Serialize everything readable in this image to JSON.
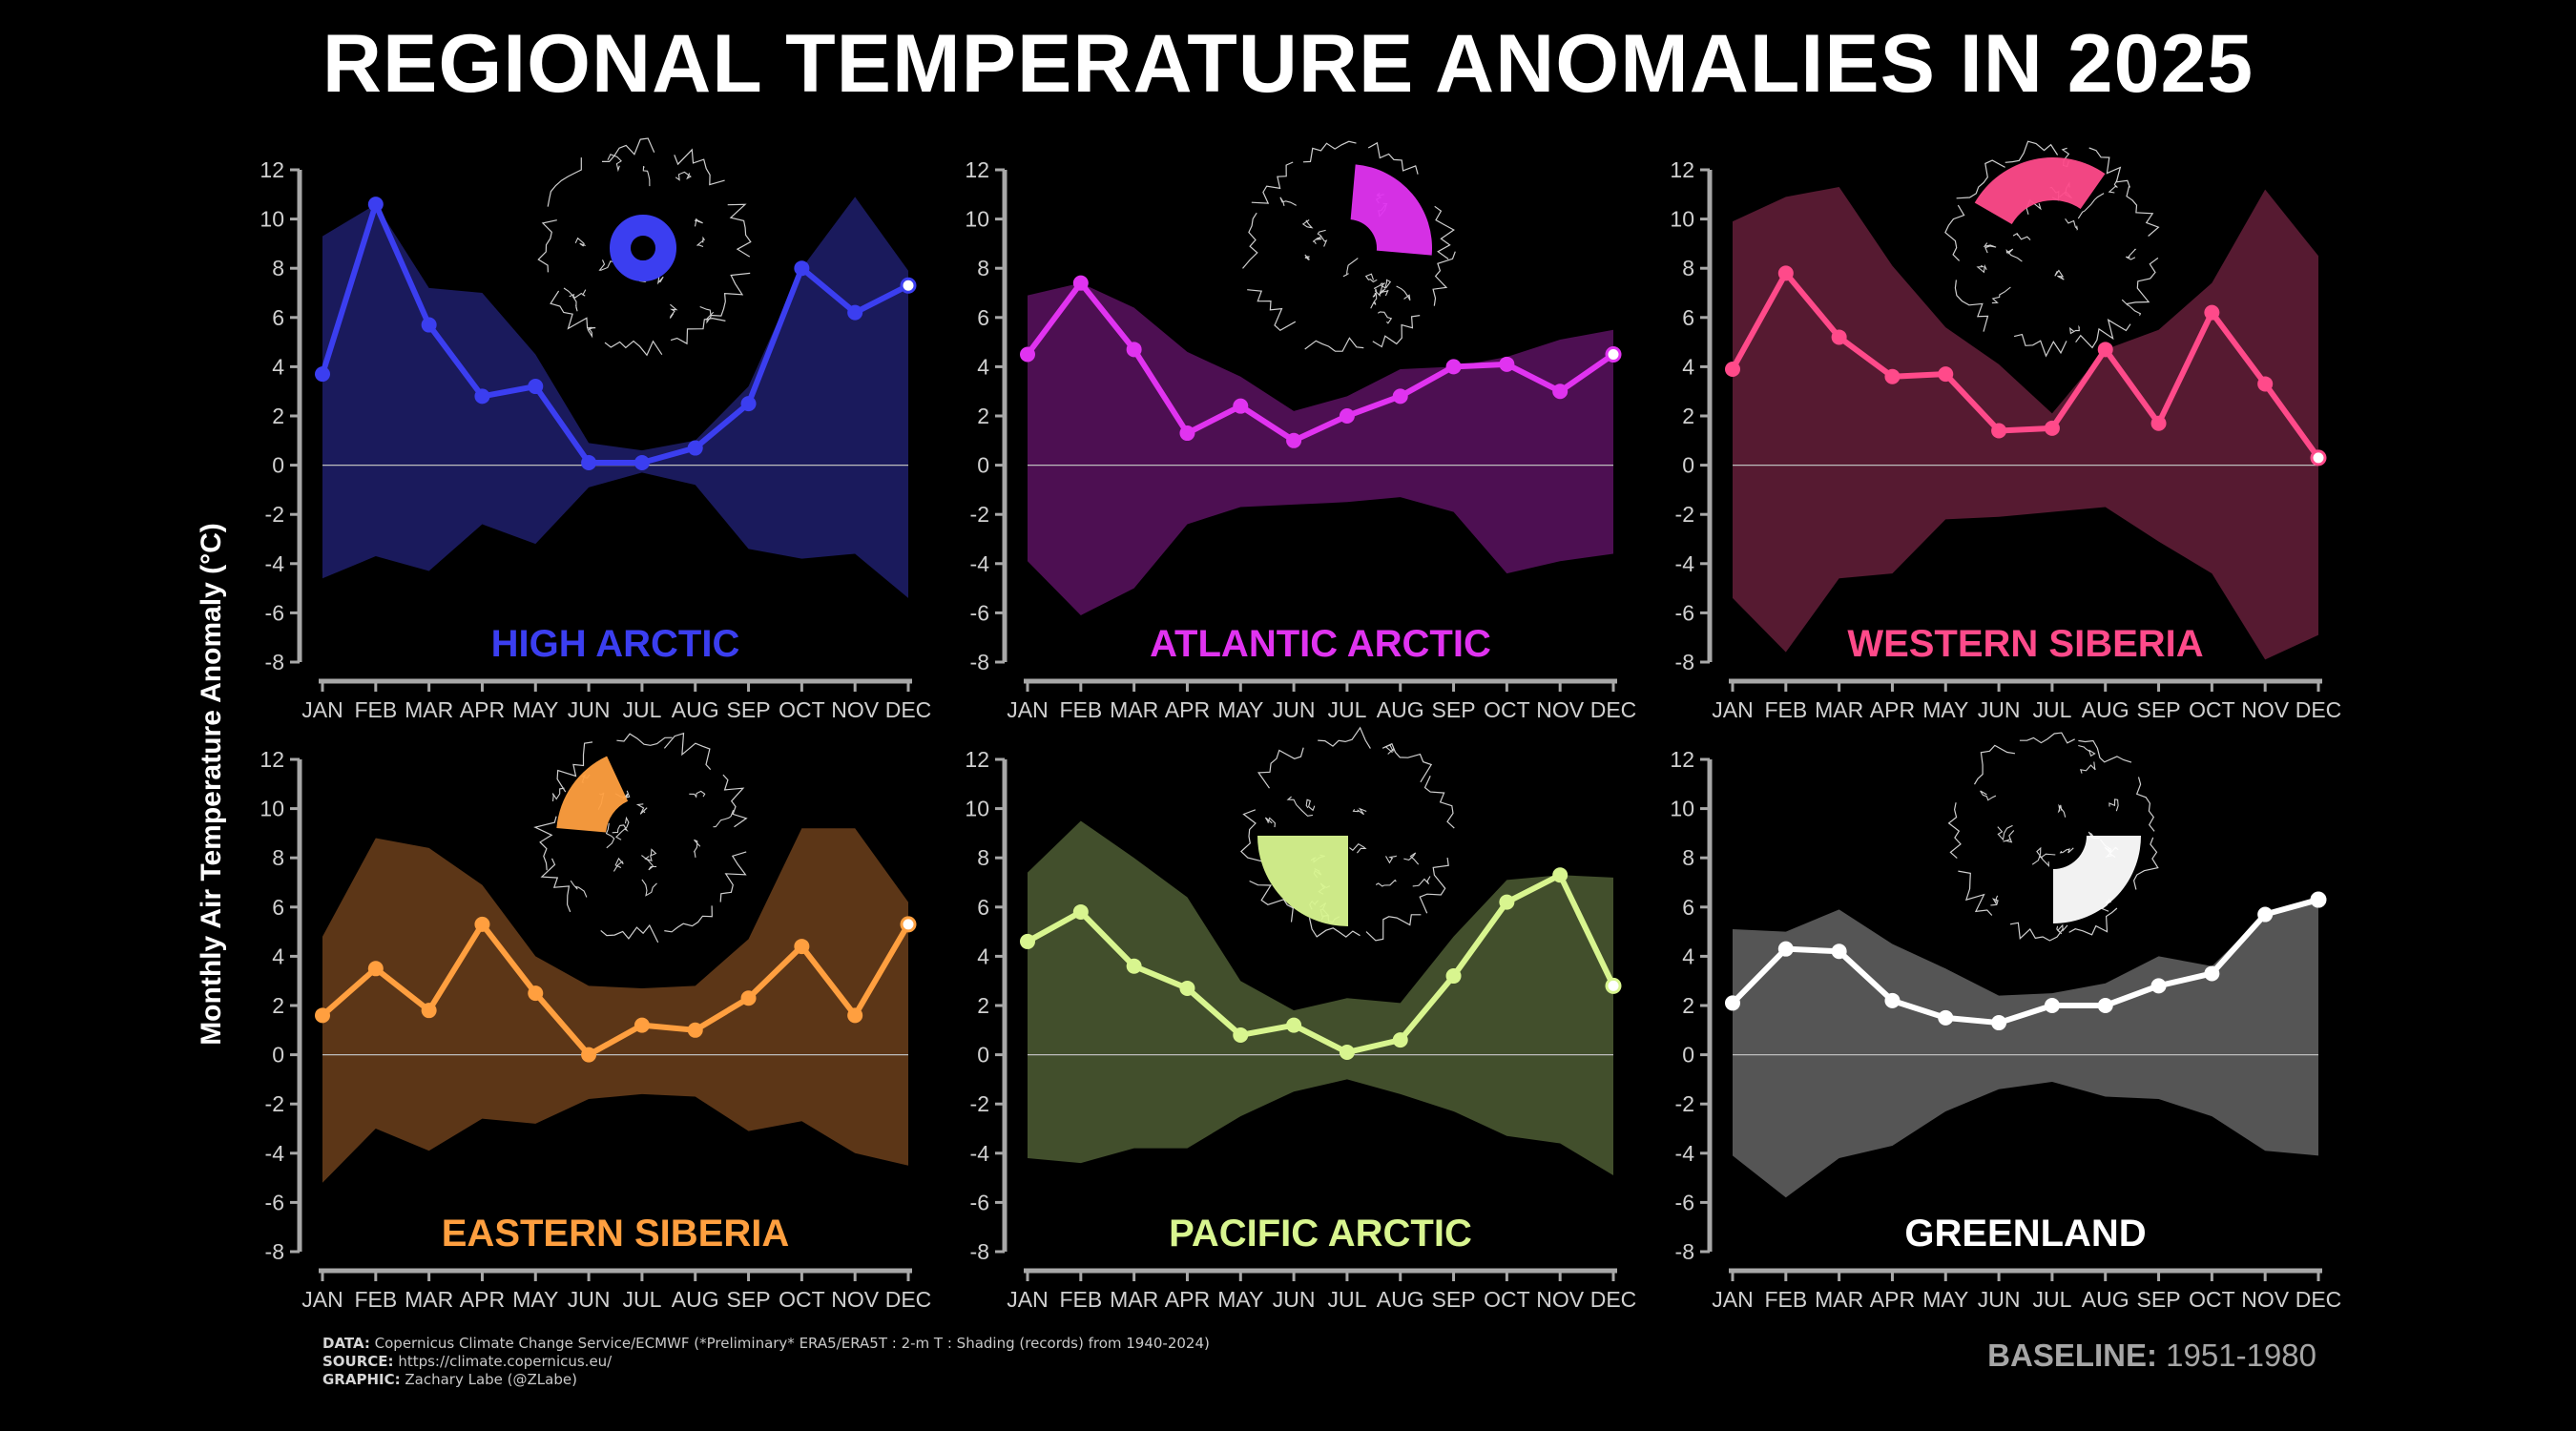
{
  "title": "REGIONAL TEMPERATURE ANOMALIES IN 2025",
  "ylabel": "Monthly Air Temperature Anomaly (°C)",
  "footer": {
    "data_label": "DATA:",
    "data_text": "Copernicus Climate Change Service/ECMWF (*Preliminary* ERA5/ERA5T : 2-m T : Shading (records) from 1940-2024)",
    "source_label": "SOURCE:",
    "source_text": "https://climate.copernicus.eu/",
    "graphic_label": "GRAPHIC:",
    "graphic_text": "Zachary Labe (@ZLabe)",
    "baseline_label": "BASELINE:",
    "baseline_text": "1951-1980"
  },
  "chart_data": [
    {
      "type": "line",
      "name": "HIGH ARCTIC",
      "color": "#3b3ef0",
      "shade_color": "#1a1a5c",
      "categories": [
        "JAN",
        "FEB",
        "MAR",
        "APR",
        "MAY",
        "JUN",
        "JUL",
        "AUG",
        "SEP",
        "OCT",
        "NOV",
        "DEC"
      ],
      "values": [
        3.7,
        10.6,
        5.7,
        2.8,
        3.2,
        0.1,
        0.1,
        0.7,
        2.5,
        8.0,
        6.2,
        7.3
      ],
      "record_max": [
        9.3,
        10.6,
        7.2,
        7.0,
        4.5,
        0.9,
        0.6,
        1.0,
        3.2,
        8.0,
        10.9,
        7.9
      ],
      "record_min": [
        -4.6,
        -3.7,
        -4.3,
        -2.4,
        -3.2,
        -0.9,
        -0.3,
        -0.8,
        -3.4,
        -3.8,
        -3.6,
        -5.4
      ],
      "ylim": [
        -8,
        12
      ]
    },
    {
      "type": "line",
      "name": "ATLANTIC ARCTIC",
      "color": "#e033f0",
      "shade_color": "#4d0f52",
      "categories": [
        "JAN",
        "FEB",
        "MAR",
        "APR",
        "MAY",
        "JUN",
        "JUL",
        "AUG",
        "SEP",
        "OCT",
        "NOV",
        "DEC"
      ],
      "values": [
        4.5,
        7.4,
        4.7,
        1.3,
        2.4,
        1.0,
        2.0,
        2.8,
        4.0,
        4.1,
        3.0,
        4.5
      ],
      "record_max": [
        6.9,
        7.4,
        6.4,
        4.6,
        3.6,
        2.2,
        2.8,
        3.9,
        4.0,
        4.4,
        5.1,
        5.5
      ],
      "record_min": [
        -3.9,
        -6.1,
        -5.0,
        -2.4,
        -1.7,
        -1.6,
        -1.5,
        -1.3,
        -1.9,
        -4.4,
        -3.9,
        -3.6
      ],
      "ylim": [
        -8,
        12
      ]
    },
    {
      "type": "line",
      "name": "WESTERN SIBERIA",
      "color": "#ff4a8a",
      "shade_color": "#561a31",
      "categories": [
        "JAN",
        "FEB",
        "MAR",
        "APR",
        "MAY",
        "JUN",
        "JUL",
        "AUG",
        "SEP",
        "OCT",
        "NOV",
        "DEC"
      ],
      "values": [
        3.9,
        7.8,
        5.2,
        3.6,
        3.7,
        1.4,
        1.5,
        4.7,
        1.7,
        6.2,
        3.3,
        0.3
      ],
      "record_max": [
        9.9,
        10.9,
        11.3,
        8.1,
        5.6,
        4.1,
        2.1,
        4.7,
        5.5,
        7.4,
        11.2,
        8.5
      ],
      "record_min": [
        -5.4,
        -7.6,
        -4.6,
        -4.4,
        -2.2,
        -2.1,
        -1.9,
        -1.7,
        -3.1,
        -4.4,
        -7.9,
        -6.9
      ],
      "ylim": [
        -8,
        12
      ]
    },
    {
      "type": "line",
      "name": "EASTERN SIBERIA",
      "color": "#ff9f3f",
      "shade_color": "#5c3617",
      "categories": [
        "JAN",
        "FEB",
        "MAR",
        "APR",
        "MAY",
        "JUN",
        "JUL",
        "AUG",
        "SEP",
        "OCT",
        "NOV",
        "DEC"
      ],
      "values": [
        1.6,
        3.5,
        1.8,
        5.3,
        2.5,
        0.0,
        1.2,
        1.0,
        2.3,
        4.4,
        1.6,
        5.3
      ],
      "record_max": [
        4.8,
        8.8,
        8.4,
        6.9,
        4.0,
        2.8,
        2.7,
        2.8,
        4.7,
        9.2,
        9.2,
        6.2
      ],
      "record_min": [
        -5.2,
        -3.0,
        -3.9,
        -2.6,
        -2.8,
        -1.8,
        -1.6,
        -1.7,
        -3.1,
        -2.7,
        -4.0,
        -4.5
      ],
      "ylim": [
        -8,
        12
      ]
    },
    {
      "type": "line",
      "name": "PACIFIC ARCTIC",
      "color": "#d8f58f",
      "shade_color": "#424f2c",
      "categories": [
        "JAN",
        "FEB",
        "MAR",
        "APR",
        "MAY",
        "JUN",
        "JUL",
        "AUG",
        "SEP",
        "OCT",
        "NOV",
        "DEC"
      ],
      "values": [
        4.6,
        5.8,
        3.6,
        2.7,
        0.8,
        1.2,
        0.1,
        0.6,
        3.2,
        6.2,
        7.3,
        2.8
      ],
      "record_max": [
        7.4,
        9.5,
        8.0,
        6.4,
        3.0,
        1.8,
        2.3,
        2.1,
        4.8,
        7.1,
        7.3,
        7.2
      ],
      "record_min": [
        -4.2,
        -4.4,
        -3.8,
        -3.8,
        -2.5,
        -1.5,
        -1.0,
        -1.6,
        -2.3,
        -3.3,
        -3.6,
        -4.9
      ],
      "ylim": [
        -8,
        12
      ]
    },
    {
      "type": "line",
      "name": "GREENLAND",
      "color": "#ffffff",
      "shade_color": "#555555",
      "categories": [
        "JAN",
        "FEB",
        "MAR",
        "APR",
        "MAY",
        "JUN",
        "JUL",
        "AUG",
        "SEP",
        "OCT",
        "NOV",
        "DEC"
      ],
      "values": [
        2.1,
        4.3,
        4.2,
        2.2,
        1.5,
        1.3,
        2.0,
        2.0,
        2.8,
        3.3,
        5.7,
        6.3
      ],
      "record_max": [
        5.1,
        5.0,
        5.9,
        4.5,
        3.5,
        2.4,
        2.5,
        2.9,
        4.0,
        3.6,
        5.7,
        6.3
      ],
      "record_min": [
        -4.1,
        -5.8,
        -4.2,
        -3.7,
        -2.3,
        -1.4,
        -1.1,
        -1.7,
        -1.8,
        -2.5,
        -3.9,
        -4.1
      ],
      "ylim": [
        -8,
        12
      ]
    }
  ]
}
